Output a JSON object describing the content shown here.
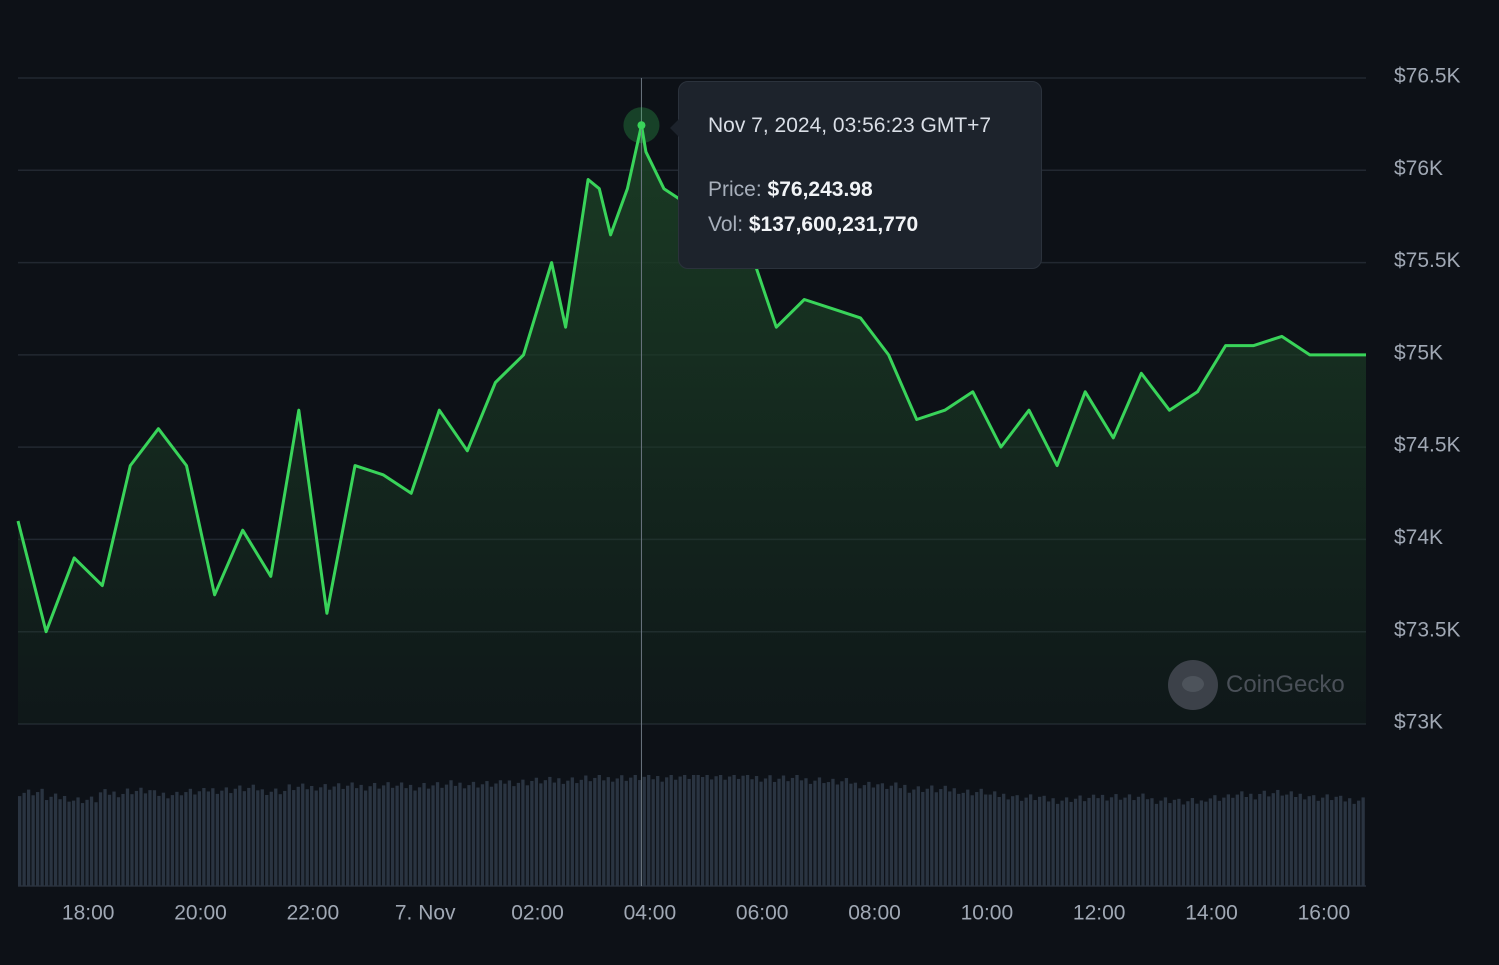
{
  "chart_data": {
    "type": "line",
    "title": "",
    "xlabel": "",
    "ylabel": "",
    "x_tick_labels": [
      "18:00",
      "20:00",
      "22:00",
      "7. Nov",
      "02:00",
      "04:00",
      "06:00",
      "08:00",
      "10:00",
      "12:00",
      "14:00",
      "16:00"
    ],
    "y_tick_labels": [
      "$76.5K",
      "$76K",
      "$75.5K",
      "$75K",
      "$74.5K",
      "$74K",
      "$73.5K",
      "$73K"
    ],
    "y_ticks": [
      76500,
      76000,
      75500,
      75000,
      74500,
      74000,
      73500,
      73000
    ],
    "ylim": [
      73000,
      76500
    ],
    "x_range_hours": [
      16.75,
      40.75
    ],
    "grid": true,
    "legend": "none",
    "colors": {
      "line": "#39d45a",
      "area_top": "#1a3b24",
      "volume": "#2a3441",
      "grid": "#222831",
      "background": "#0d1117"
    },
    "series": [
      {
        "name": "Price",
        "x_hours": [
          16.75,
          17.25,
          17.75,
          18.25,
          18.75,
          19.25,
          19.75,
          20.25,
          20.75,
          21.25,
          21.75,
          22.25,
          22.75,
          23.25,
          23.75,
          24.25,
          24.75,
          25.25,
          25.75,
          26.25,
          26.5,
          26.9,
          27.1,
          27.3,
          27.6,
          27.85,
          27.93,
          28.25,
          28.75,
          29.25,
          29.75,
          30.25,
          30.75,
          31.25,
          31.75,
          32.25,
          32.75,
          33.25,
          33.75,
          34.25,
          34.75,
          35.25,
          35.75,
          36.25,
          36.75,
          37.25,
          37.75,
          38.25,
          38.75,
          39.25,
          39.75,
          40.25,
          40.75
        ],
        "values": [
          74100,
          73500,
          73900,
          73750,
          74400,
          74600,
          74400,
          73700,
          74050,
          73800,
          74700,
          73600,
          74400,
          74350,
          74250,
          74700,
          74480,
          74850,
          75000,
          75500,
          75150,
          75950,
          75900,
          75650,
          75900,
          76243.98,
          76100,
          75900,
          75800,
          75700,
          75600,
          75150,
          75300,
          75250,
          75200,
          75000,
          74650,
          74700,
          74800,
          74500,
          74700,
          74400,
          74800,
          74550,
          74900,
          74700,
          74800,
          75050,
          75050,
          75100,
          75000,
          75000,
          75000
        ]
      }
    ],
    "volume_bars": {
      "name": "Vol",
      "note_units": "relative",
      "start_hours": 16.75,
      "step_hours": 0.08,
      "values": [
        0.85,
        0.8,
        0.78,
        0.84,
        0.86,
        0.83,
        0.85,
        0.87,
        0.88,
        0.86,
        0.89,
        0.9,
        0.9,
        0.91,
        0.9,
        0.91,
        0.92,
        0.92,
        0.94,
        0.95,
        0.96,
        0.97,
        0.98,
        0.98,
        0.99,
        1.0,
        0.99,
        0.98,
        0.97,
        0.96,
        0.94,
        0.92,
        0.9,
        0.88,
        0.87,
        0.85,
        0.82,
        0.8,
        0.78,
        0.79,
        0.81,
        0.8,
        0.78,
        0.76,
        0.8,
        0.82,
        0.84,
        0.82,
        0.8,
        0.78
      ]
    }
  },
  "tooltip": {
    "date": "Nov 7, 2024, 03:56:23 GMT+7",
    "price_label": "Price:",
    "price_value": "$76,243.98",
    "vol_label": "Vol:",
    "vol_value": "$137,600,231,770"
  },
  "watermark": {
    "text": "CoinGecko"
  }
}
